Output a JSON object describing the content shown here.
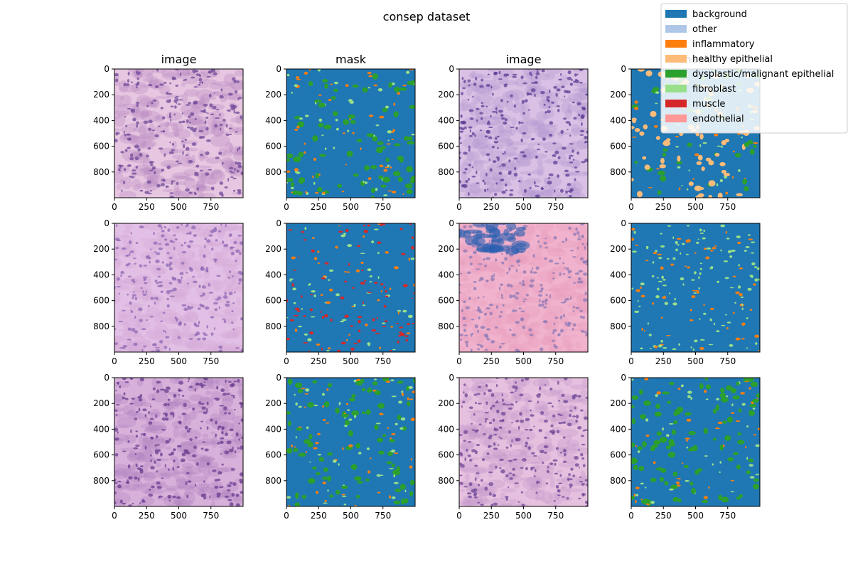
{
  "figure": {
    "suptitle": "consep dataset",
    "column_titles": [
      "image",
      "mask",
      "image",
      "mask"
    ]
  },
  "axes": {
    "x_ticks": [
      "0",
      "250",
      "500",
      "750"
    ],
    "y_ticks": [
      "0",
      "200",
      "400",
      "600",
      "800"
    ],
    "xlim": [
      0,
      1000
    ],
    "ylim": [
      0,
      1000
    ]
  },
  "legend": {
    "placement": "top-right",
    "items": [
      {
        "label": "background",
        "color": "#1f77b4"
      },
      {
        "label": "other",
        "color": "#aec7e8"
      },
      {
        "label": "inflammatory",
        "color": "#ff7f0e"
      },
      {
        "label": "healthy epithelial",
        "color": "#ffbb78"
      },
      {
        "label": "dysplastic/malignant epithelial",
        "color": "#2ca02c"
      },
      {
        "label": "fibroblast",
        "color": "#98df8a"
      },
      {
        "label": "muscle",
        "color": "#d62728"
      },
      {
        "label": "endothelial",
        "color": "#ff9896"
      }
    ]
  },
  "panels": [
    {
      "kind": "image",
      "style": "he-tumor"
    },
    {
      "kind": "mask",
      "dominant": [
        "dysplastic/malignant epithelial",
        "fibroblast",
        "inflammatory"
      ]
    },
    {
      "kind": "image",
      "style": "he-glands"
    },
    {
      "kind": "mask",
      "dominant": [
        "healthy epithelial",
        "fibroblast",
        "inflammatory",
        "dysplastic/malignant epithelial"
      ]
    },
    {
      "kind": "image",
      "style": "he-muscle"
    },
    {
      "kind": "mask",
      "dominant": [
        "muscle",
        "fibroblast",
        "inflammatory"
      ]
    },
    {
      "kind": "image",
      "style": "he-stroma-ink"
    },
    {
      "kind": "mask",
      "dominant": [
        "fibroblast",
        "inflammatory"
      ]
    },
    {
      "kind": "image",
      "style": "he-tumor-dense"
    },
    {
      "kind": "mask",
      "dominant": [
        "dysplastic/malignant epithelial",
        "fibroblast",
        "inflammatory"
      ]
    },
    {
      "kind": "image",
      "style": "he-gland-edge"
    },
    {
      "kind": "mask",
      "dominant": [
        "dysplastic/malignant epithelial",
        "fibroblast",
        "inflammatory"
      ]
    }
  ]
}
